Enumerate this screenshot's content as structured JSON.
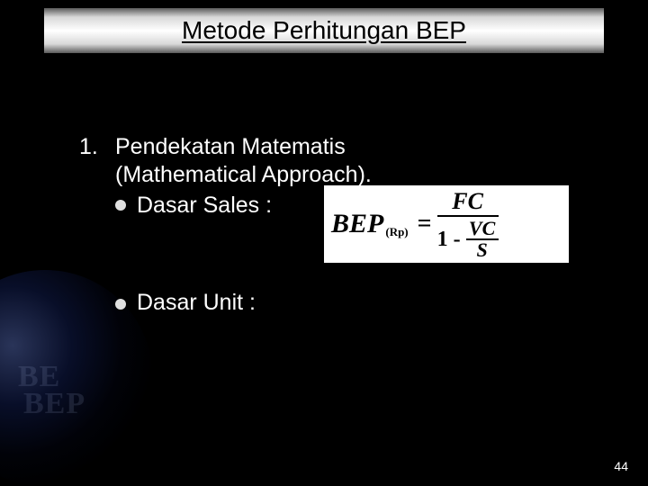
{
  "title": "Metode Perhitungan BEP",
  "list": {
    "number": "1.",
    "heading_line1": "Pendekatan Matematis",
    "heading_line2": "(Mathematical Approach).",
    "item1_label": "Dasar Sales :",
    "item2_label": "Dasar Unit :"
  },
  "formula_sales": {
    "lhs": "BEP",
    "subscript": "(Rp)",
    "equals": "=",
    "numerator": "FC",
    "denominator_prefix": "1 -",
    "sub_numerator": "VC",
    "sub_denominator": "S"
  },
  "ghost": {
    "line1": "BE",
    "line2": "BEP"
  },
  "page_number": "44",
  "colors": {
    "background": "#000000",
    "text": "#ffffff",
    "title_text": "#000000",
    "formula_bg": "#ffffff",
    "formula_text": "#000000",
    "bullet": "#e0e0e0"
  }
}
